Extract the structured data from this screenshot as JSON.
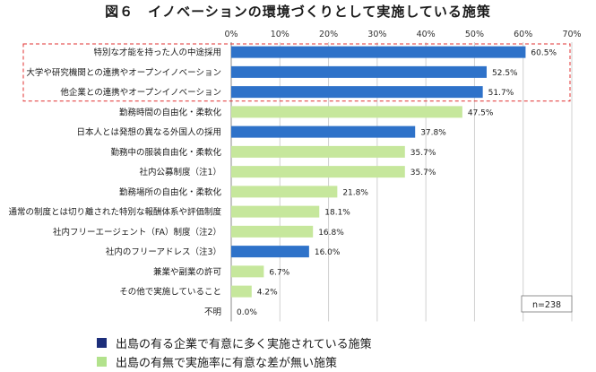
{
  "chart_data": {
    "type": "bar",
    "orientation": "horizontal",
    "title": "図６　イノベーションの環境づくりとして実施している施策",
    "unit": "%",
    "xlim": [
      0,
      70
    ],
    "xticks": [
      0,
      10,
      20,
      30,
      40,
      50,
      60,
      70
    ],
    "tick_suffix": "%",
    "categories": [
      "特別な才能を持った人の中途採用",
      "大学や研究機関との連携やオープンイノベーション",
      "他企業との連携やオープンイノベーション",
      "勤務時間の自由化・柔軟化",
      "日本人とは発想の異なる外国人の採用",
      "勤務中の服装自由化・柔軟化",
      "社内公募制度（注1）",
      "勤務場所の自由化・柔軟化",
      "通常の制度とは切り離された特別な報酬体系や評価制度",
      "社内フリーエージェント（FA）制度（注2）",
      "社内のフリーアドレス（注3）",
      "兼業や副業の許可",
      "その他で実施していること",
      "不明"
    ],
    "values": [
      60.5,
      52.5,
      51.7,
      47.5,
      37.8,
      35.7,
      35.7,
      21.8,
      18.1,
      16.8,
      16.0,
      6.7,
      4.2,
      0.0
    ],
    "value_labels": [
      "60.5%",
      "52.5%",
      "51.7%",
      "47.5%",
      "37.8%",
      "35.7%",
      "35.7%",
      "21.8%",
      "18.1%",
      "16.8%",
      "16.0%",
      "6.7%",
      "4.2%",
      "0.0%"
    ],
    "groups": [
      "significant",
      "significant",
      "significant",
      "not_significant",
      "significant",
      "not_significant",
      "not_significant",
      "not_significant",
      "not_significant",
      "not_significant",
      "significant",
      "not_significant",
      "not_significant",
      "not_significant"
    ],
    "colors": {
      "significant": "#2e72c9",
      "not_significant": "#c6e79c",
      "highlight_box": "#e03030",
      "grid": "#d0d0d0"
    },
    "sample_size": "n=238",
    "highlighted_rows": [
      0,
      1,
      2
    ],
    "legend": [
      {
        "key": "significant",
        "label": "出島の有る企業で有意に多く実施されている施策",
        "color": "#1c2e7a"
      },
      {
        "key": "not_significant",
        "label": "出島の有無で実施率に有意な差が無い施策",
        "color": "#b2e28c"
      }
    ]
  }
}
